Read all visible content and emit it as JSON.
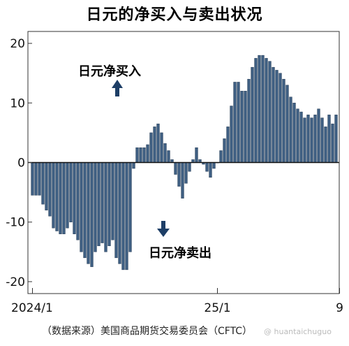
{
  "chart_data": {
    "type": "bar",
    "title": "日元的净买入与卖出状况",
    "source": "（数据来源）美国商品期货交易委员会（CFTC）",
    "watermark": "@ huantaichuguo",
    "annotations": {
      "buy": "日元净买入",
      "sell": "日元净卖出"
    },
    "colors": {
      "bar": "#3f5f82",
      "bar_edge": "#1c3048",
      "arrow": "#1d3e66"
    },
    "ylim": [
      -22,
      22
    ],
    "yticks": [
      20,
      10,
      0,
      -10,
      -20
    ],
    "ytick_labels": [
      "20",
      "10",
      "0",
      "-10",
      "-20"
    ],
    "xticks": [
      {
        "label": "2024/1",
        "index": 0
      },
      {
        "label": "25/1",
        "index": 53
      },
      {
        "label": "9",
        "index": 88
      }
    ],
    "values": [
      -5.5,
      -5.5,
      -5.5,
      -7,
      -8,
      -9,
      -11,
      -11.5,
      -12,
      -12,
      -11,
      -10,
      -12,
      -13,
      -15,
      -16,
      -17,
      -17.5,
      -15,
      -14,
      -13.5,
      -15,
      -14,
      -13,
      -16,
      -17,
      -18,
      -18,
      -15,
      -1,
      2.5,
      2.5,
      2.5,
      3,
      5,
      6,
      6.5,
      5,
      3.2,
      2,
      0.5,
      -2,
      -4,
      -6,
      -3.5,
      -1.5,
      0.5,
      2.5,
      0.5,
      -0.3,
      -1.5,
      -2.5,
      -1,
      0,
      2,
      4,
      6,
      9.5,
      13.5,
      13.5,
      12,
      12,
      14,
      16,
      17.5,
      18,
      18,
      17.5,
      17,
      16,
      15.5,
      15,
      14,
      13,
      11,
      10,
      9,
      8.5,
      7.5,
      8,
      7.5,
      8,
      9,
      7.5,
      6,
      8,
      6.5,
      8
    ]
  }
}
